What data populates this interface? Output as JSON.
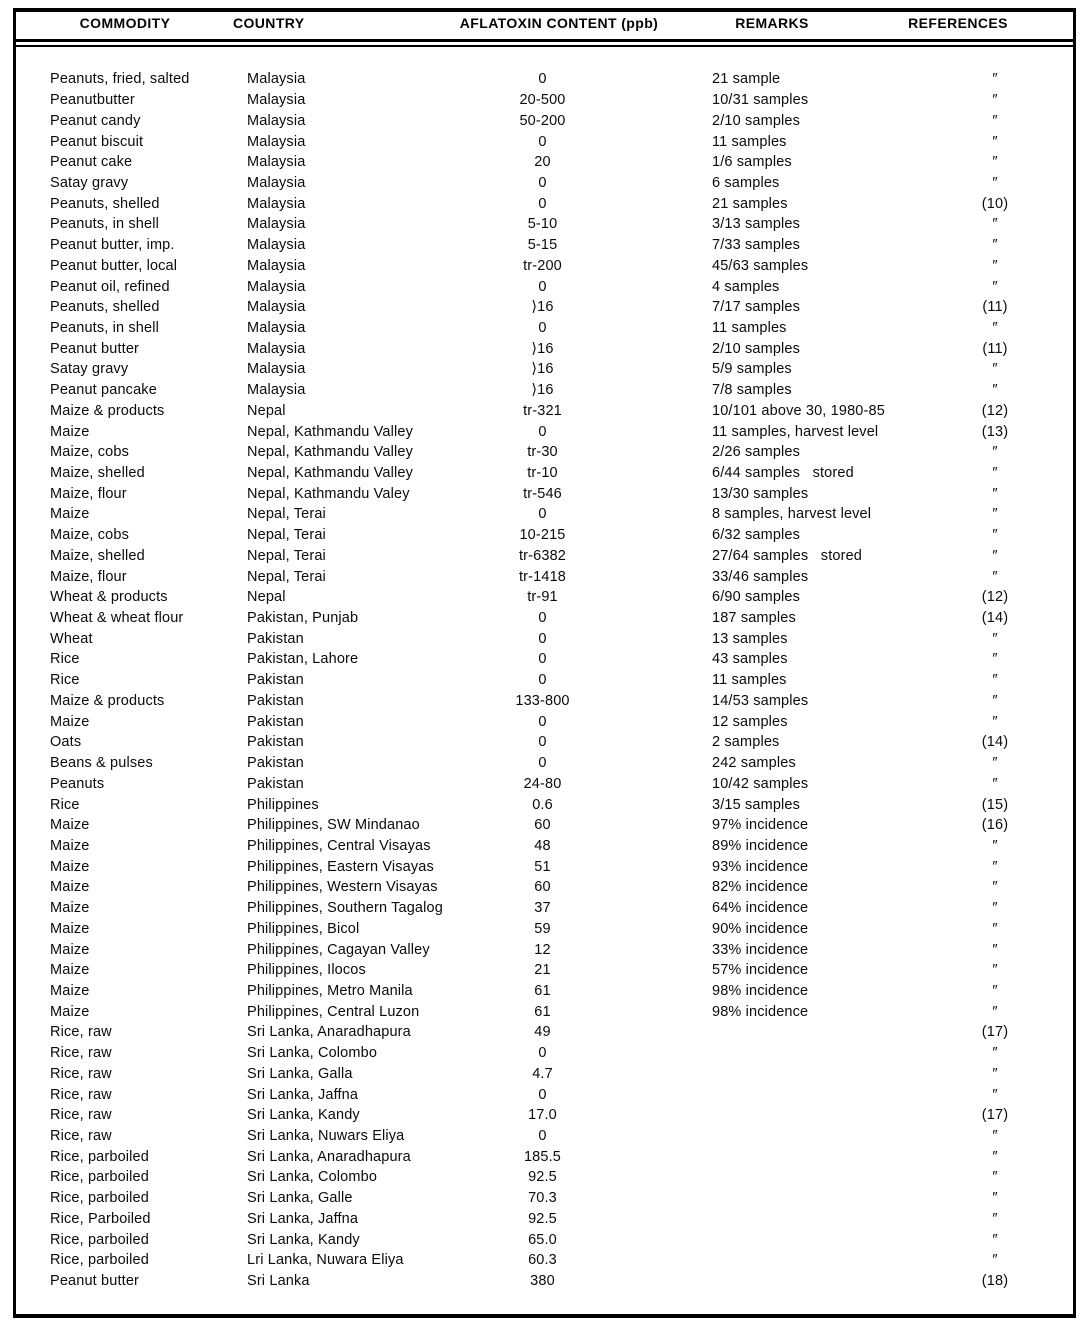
{
  "document": {
    "type": "scanned-table-page"
  },
  "table": {
    "headers": [
      "COMMODITY",
      "COUNTRY",
      "AFLATOXIN CONTENT (ppb)",
      "REMARKS",
      "REFERENCES"
    ],
    "ditto_mark": "″",
    "rows": [
      [
        "Peanuts, fried, salted",
        "Malaysia",
        "0",
        "21 sample",
        "″"
      ],
      [
        "Peanutbutter",
        "Malaysia",
        "20-500",
        "10/31 samples",
        "″"
      ],
      [
        "Peanut candy",
        "Malaysia",
        "50-200",
        "2/10 samples",
        "″"
      ],
      [
        "Peanut biscuit",
        "Malaysia",
        "0",
        "11 samples",
        "″"
      ],
      [
        "Peanut cake",
        "Malaysia",
        "20",
        "1/6 samples",
        "″"
      ],
      [
        "Satay gravy",
        "Malaysia",
        "0",
        "6 samples",
        "″"
      ],
      [
        "Peanuts, shelled",
        "Malaysia",
        "0",
        "21 samples",
        "(10)"
      ],
      [
        "Peanuts, in shell",
        "Malaysia",
        "5-10",
        "3/13 samples",
        "″"
      ],
      [
        "Peanut butter, imp.",
        "Malaysia",
        "5-15",
        "7/33 samples",
        "″"
      ],
      [
        "Peanut butter, local",
        "Malaysia",
        "tr-200",
        "45/63 samples",
        "″"
      ],
      [
        "Peanut oil, refined",
        "Malaysia",
        "0",
        "4 samples",
        "″"
      ],
      [
        "Peanuts, shelled",
        "Malaysia",
        "⟩16",
        "7/17 samples",
        "(11)"
      ],
      [
        "Peanuts, in shell",
        "Malaysia",
        "0",
        "11 samples",
        "″"
      ],
      [
        "Peanut butter",
        "Malaysia",
        "⟩16",
        "2/10 samples",
        "(11)"
      ],
      [
        "Satay gravy",
        "Malaysia",
        "⟩16",
        "5/9 samples",
        "″"
      ],
      [
        "Peanut pancake",
        "Malaysia",
        "⟩16",
        "7/8 samples",
        "″"
      ],
      [
        "Maize & products",
        "Nepal",
        "tr-321",
        "10/101 above 30, 1980-85",
        "(12)"
      ],
      [
        "Maize",
        "Nepal, Kathmandu Valley",
        "0",
        "11 samples, harvest level",
        "(13)"
      ],
      [
        "Maize, cobs",
        "Nepal, Kathmandu Valley",
        "tr-30",
        "2/26 samples",
        "″"
      ],
      [
        "Maize, shelled",
        "Nepal, Kathmandu Valley",
        "tr-10",
        "6/44 samples   stored",
        "″"
      ],
      [
        "Maize, flour",
        "Nepal, Kathmandu Valey",
        "tr-546",
        "13/30 samples",
        "″"
      ],
      [
        "Maize",
        "Nepal, Terai",
        "0",
        "8 samples, harvest level",
        "″"
      ],
      [
        "Maize, cobs",
        "Nepal, Terai",
        "10-215",
        "6/32 samples",
        "″"
      ],
      [
        "Maize, shelled",
        "Nepal, Terai",
        "tr-6382",
        "27/64 samples   stored",
        "″"
      ],
      [
        "Maize, flour",
        "Nepal, Terai",
        "tr-1418",
        "33/46 samples",
        "″"
      ],
      [
        "Wheat & products",
        "Nepal",
        "tr-91",
        "6/90 samples",
        "(12)"
      ],
      [
        "Wheat & wheat flour",
        "Pakistan, Punjab",
        "0",
        "187 samples",
        "(14)"
      ],
      [
        "Wheat",
        "Pakistan",
        "0",
        "13 samples",
        "″"
      ],
      [
        "Rice",
        "Pakistan, Lahore",
        "0",
        "43 samples",
        "″"
      ],
      [
        "Rice",
        "Pakistan",
        "0",
        "11 samples",
        "″"
      ],
      [
        "Maize & products",
        "Pakistan",
        "133-800",
        "14/53 samples",
        "″"
      ],
      [
        "Maize",
        "Pakistan",
        "0",
        "12 samples",
        "″"
      ],
      [
        "Oats",
        "Pakistan",
        "0",
        "2 samples",
        "(14)"
      ],
      [
        "Beans & pulses",
        "Pakistan",
        "0",
        "242 samples",
        "″"
      ],
      [
        "Peanuts",
        "Pakistan",
        "24-80",
        "10/42 samples",
        "″"
      ],
      [
        "Rice",
        "Philippines",
        "0.6",
        "3/15 samples",
        "(15)"
      ],
      [
        "Maize",
        "Philippines, SW Mindanao",
        "60",
        "97% incidence",
        "(16)"
      ],
      [
        "Maize",
        "Philippines, Central Visayas",
        "48",
        "89% incidence",
        "″"
      ],
      [
        "Maize",
        "Philippines, Eastern Visayas",
        "51",
        "93% incidence",
        "″"
      ],
      [
        "Maize",
        "Philippines, Western Visayas",
        "60",
        "82% incidence",
        "″"
      ],
      [
        "Maize",
        "Philippines, Southern Tagalog",
        "37",
        "64% incidence",
        "″"
      ],
      [
        "Maize",
        "Philippines, Bicol",
        "59",
        "90% incidence",
        "″"
      ],
      [
        "Maize",
        "Philippines, Cagayan Valley",
        "12",
        "33% incidence",
        "″"
      ],
      [
        "Maize",
        "Philippines, Ilocos",
        "21",
        "57% incidence",
        "″"
      ],
      [
        "Maize",
        "Philippines, Metro Manila",
        "61",
        "98% incidence",
        "″"
      ],
      [
        "Maize",
        "Philippines, Central Luzon",
        "61",
        "98% incidence",
        "″"
      ],
      [
        "Rice, raw",
        "Sri Lanka, Anaradhapura",
        "49",
        "",
        "(17)"
      ],
      [
        "Rice, raw",
        "Sri Lanka, Colombo",
        "0",
        "",
        "″"
      ],
      [
        "Rice, raw",
        "Sri Lanka, Galla",
        "4.7",
        "",
        "″"
      ],
      [
        "Rice, raw",
        "Sri Lanka, Jaffna",
        "0",
        "",
        "″"
      ],
      [
        "Rice, raw",
        "Sri Lanka, Kandy",
        "17.0",
        "",
        "(17)"
      ],
      [
        "Rice, raw",
        "Sri Lanka, Nuwars Eliya",
        "0",
        "",
        "″"
      ],
      [
        "Rice, parboiled",
        "Sri Lanka, Anaradhapura",
        "185.5",
        "",
        "″"
      ],
      [
        "Rice, parboiled",
        "Sri Lanka, Colombo",
        "92.5",
        "",
        "″"
      ],
      [
        "Rice, parboiled",
        "Sri Lanka, Galle",
        "70.3",
        "",
        "″"
      ],
      [
        "Rice, Parboiled",
        "Sri Lanka, Jaffna",
        "92.5",
        "",
        "″"
      ],
      [
        "Rice, parboiled",
        "Sri Lanka, Kandy",
        "65.0",
        "",
        "″"
      ],
      [
        "Rice, parboiled",
        "Lri Lanka, Nuwara Eliya",
        "60.3",
        "",
        "″"
      ],
      [
        "Peanut butter",
        "Sri Lanka",
        "380",
        "",
        "(18)"
      ]
    ]
  }
}
